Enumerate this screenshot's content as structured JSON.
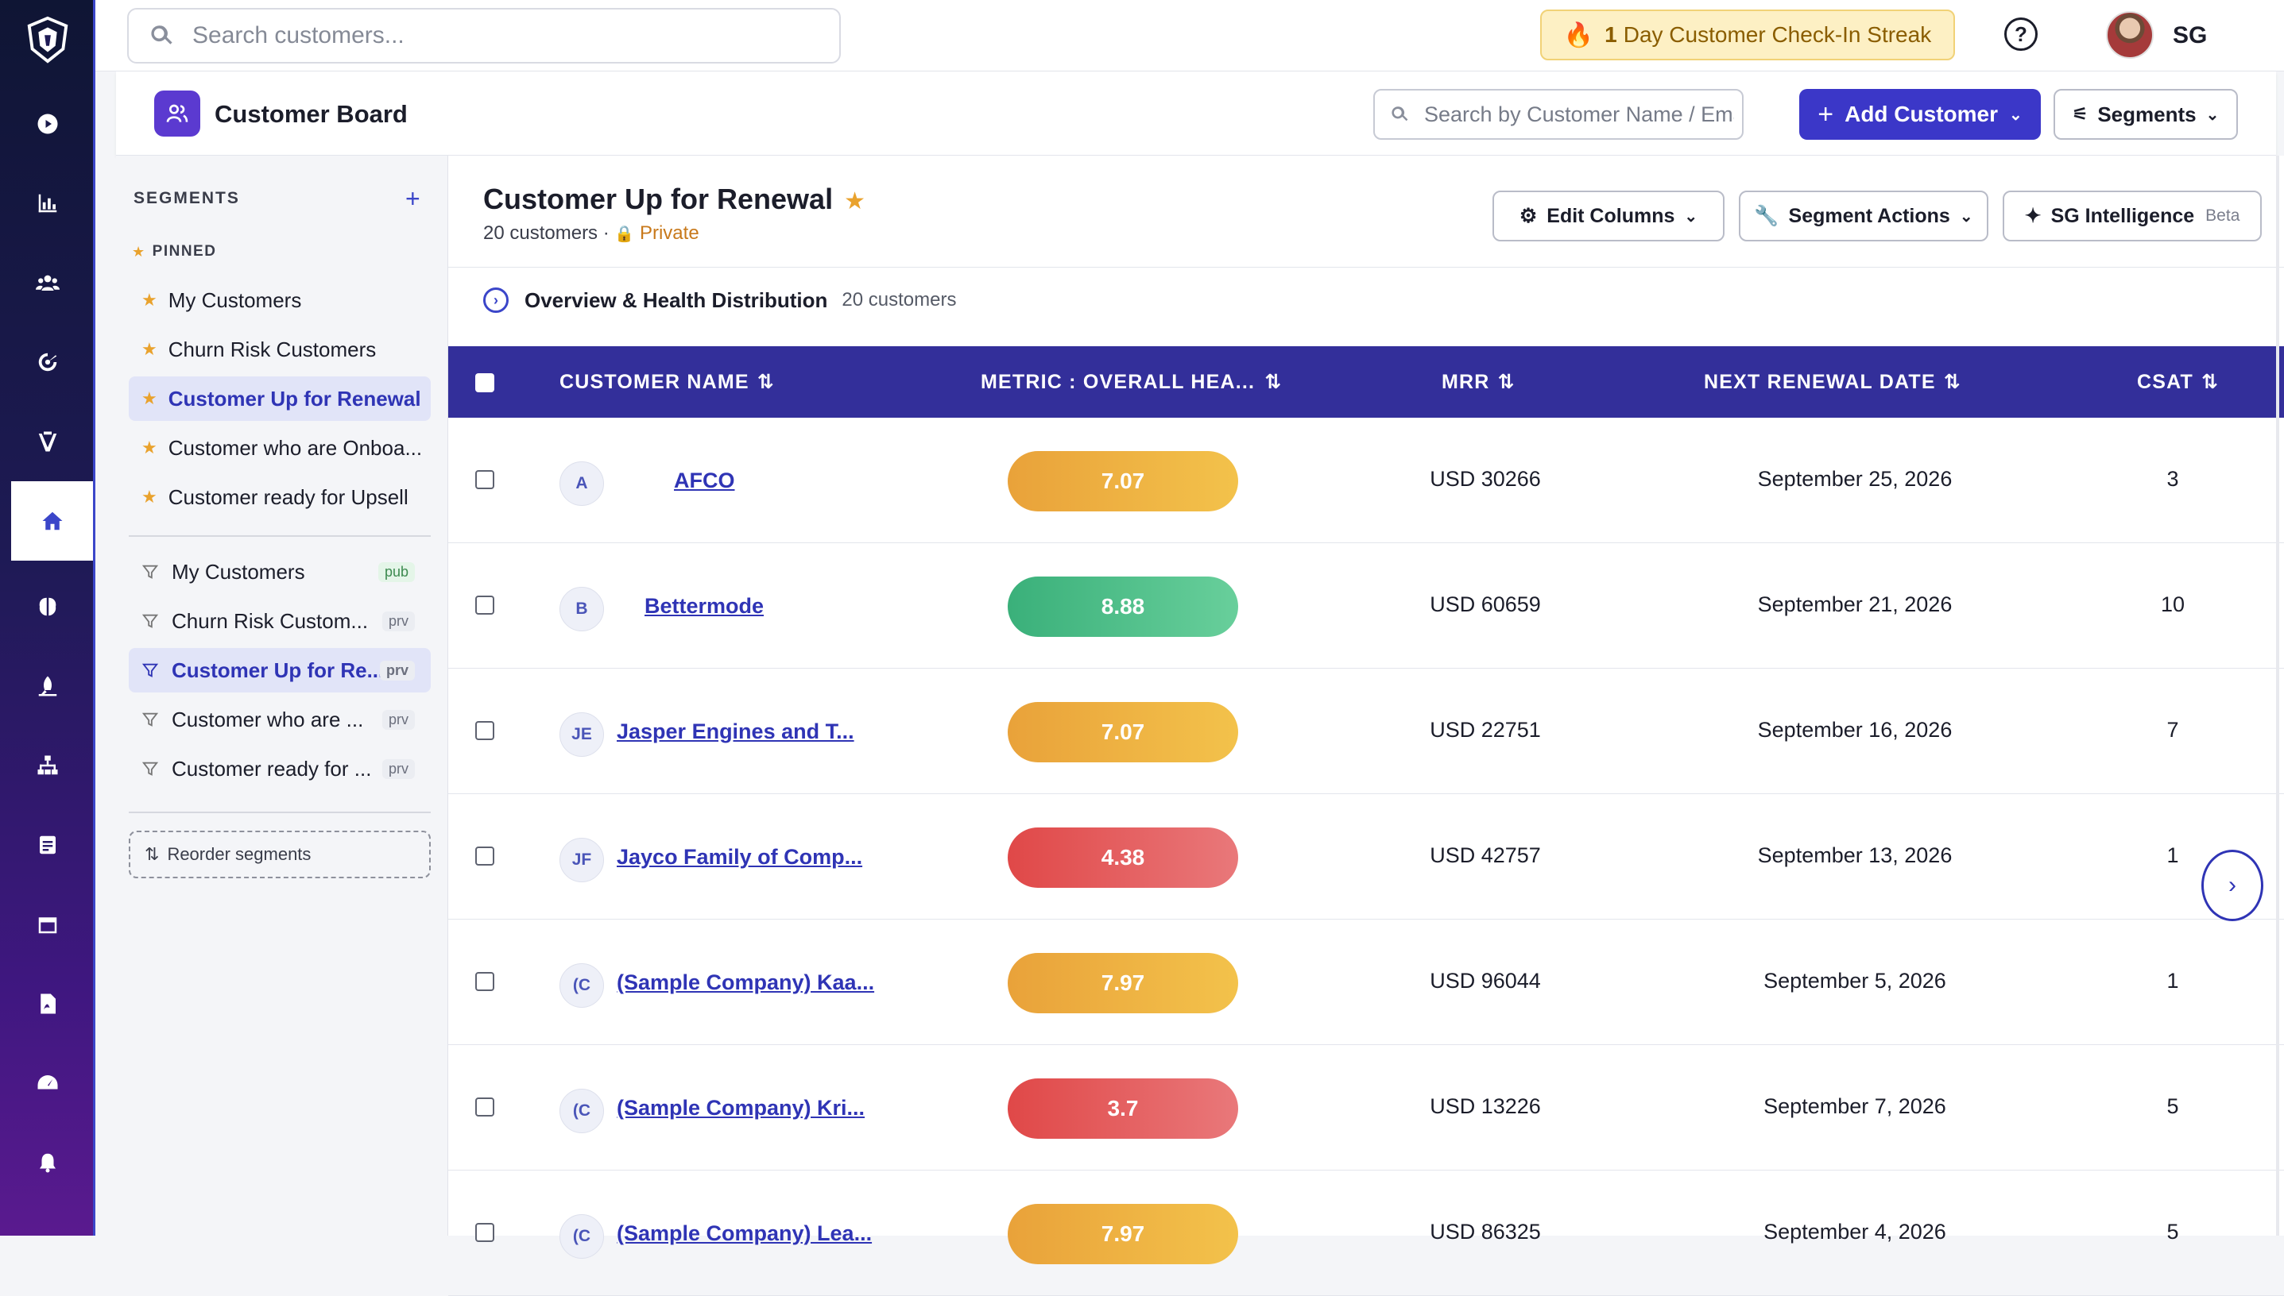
{
  "topbar": {
    "search_placeholder": "Search customers...",
    "streak_count": "1",
    "streak_label": "Day Customer Check-In Streak",
    "help_glyph": "?",
    "user_initials": "SG"
  },
  "rail": {
    "icons": [
      "logo-shield-icon",
      "play-circle-icon",
      "bar-chart-icon",
      "users-group-icon",
      "radar-icon",
      "funnel-icon",
      "home-icon",
      "brain-icon",
      "rocket-icon",
      "hierarchy-icon",
      "document-icon",
      "calendar-icon",
      "pdf-icon",
      "gauge-icon",
      "bell-icon"
    ],
    "active": "home-icon"
  },
  "board": {
    "title": "Customer Board",
    "search_placeholder": "Search by Customer Name / Email",
    "add_label": "Add Customer",
    "segments_label": "Segments"
  },
  "segments": {
    "heading": "SEGMENTS",
    "add_glyph": "+",
    "pinned_label": "PINNED",
    "pinned": [
      {
        "label": "My Customers"
      },
      {
        "label": "Churn Risk Customers"
      },
      {
        "label": "Customer Up for Renewal"
      },
      {
        "label": "Customer who are Onboa..."
      },
      {
        "label": "Customer ready for Upsell"
      }
    ],
    "all": [
      {
        "label": "My Customers",
        "tag": "pub"
      },
      {
        "label": "Churn Risk Custom...",
        "tag": "prv"
      },
      {
        "label": "Customer Up for Re...",
        "tag": "prv"
      },
      {
        "label": "Customer who are ...",
        "tag": "prv"
      },
      {
        "label": "Customer ready for ...",
        "tag": "prv"
      }
    ],
    "reorder_label": "Reorder segments"
  },
  "main": {
    "title": "Customer Up for Renewal",
    "sub_count": "20 customers ·",
    "visibility": "Private",
    "edit_columns": "Edit Columns",
    "segment_actions": "Segment Actions",
    "intelligence": "SG Intelligence",
    "beta": "Beta",
    "overview_title": "Overview & Health Distribution",
    "overview_count": "20 customers"
  },
  "table": {
    "headers": {
      "name": "CUSTOMER NAME",
      "health": "METRIC : OVERALL HEA...",
      "mrr": "MRR",
      "renewal": "NEXT RENEWAL DATE",
      "csat": "CSAT"
    },
    "rows": [
      {
        "initials": "A",
        "name": "AFCO",
        "health": "7.07",
        "health_color": "#eeb040",
        "mrr": "USD 30266",
        "renewal": "September 25, 2026",
        "csat": "3"
      },
      {
        "initials": "B",
        "name": "Bettermode",
        "health": "8.88",
        "health_color": "#4fc087",
        "mrr": "USD 60659",
        "renewal": "September 21, 2026",
        "csat": "10"
      },
      {
        "initials": "JE",
        "name": "Jasper Engines and T...",
        "health": "7.07",
        "health_color": "#eeb040",
        "mrr": "USD 22751",
        "renewal": "September 16, 2026",
        "csat": "7"
      },
      {
        "initials": "JF",
        "name": "Jayco Family of Comp...",
        "health": "4.38",
        "health_color": "#e35c5c",
        "mrr": "USD 42757",
        "renewal": "September 13, 2026",
        "csat": "1"
      },
      {
        "initials": "(C",
        "name": "(Sample Company) Kaa...",
        "health": "7.97",
        "health_color": "#eeb040",
        "mrr": "USD 96044",
        "renewal": "September 5, 2026",
        "csat": "1"
      },
      {
        "initials": "(C",
        "name": "(Sample Company) Kri...",
        "health": "3.7",
        "health_color": "#e35c5c",
        "mrr": "USD 13226",
        "renewal": "September 7, 2026",
        "csat": "5"
      },
      {
        "initials": "(C",
        "name": "(Sample Company) Lea...",
        "health": "7.97",
        "health_color": "#eeb040",
        "mrr": "USD 86325",
        "renewal": "September 4, 2026",
        "csat": "5"
      }
    ]
  }
}
